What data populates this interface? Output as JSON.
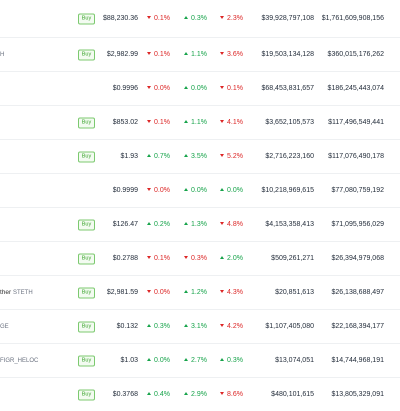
{
  "buy_label": "Buy",
  "colors": {
    "up": "#16a34a",
    "down": "#dc2626",
    "buy_border": "#7cc96f"
  },
  "rows": [
    {
      "name": "",
      "symbol": "",
      "buy": true,
      "price": "$88,230.36",
      "h1": {
        "dir": "down",
        "value": "0.1%"
      },
      "h24": {
        "dir": "up",
        "value": "0.3%"
      },
      "d7": {
        "dir": "down",
        "value": "2.3%"
      },
      "volume": "$39,928,797,108",
      "market_cap": "$1,761,609,908,156"
    },
    {
      "name": "",
      "symbol": "H",
      "buy": true,
      "price": "$2,982.99",
      "h1": {
        "dir": "down",
        "value": "0.1%"
      },
      "h24": {
        "dir": "up",
        "value": "1.1%"
      },
      "d7": {
        "dir": "down",
        "value": "3.6%"
      },
      "volume": "$19,503,134,128",
      "market_cap": "$360,015,176,262"
    },
    {
      "name": "",
      "symbol": "",
      "buy": false,
      "price": "$0.9996",
      "h1": {
        "dir": "down",
        "value": "0.0%"
      },
      "h24": {
        "dir": "up",
        "value": "0.0%"
      },
      "d7": {
        "dir": "down",
        "value": "0.1%"
      },
      "volume": "$68,453,831,657",
      "market_cap": "$186,245,443,074"
    },
    {
      "name": "",
      "symbol": "",
      "buy": true,
      "price": "$853.02",
      "h1": {
        "dir": "down",
        "value": "0.1%"
      },
      "h24": {
        "dir": "up",
        "value": "1.1%"
      },
      "d7": {
        "dir": "down",
        "value": "4.1%"
      },
      "volume": "$3,652,105,573",
      "market_cap": "$117,496,549,441"
    },
    {
      "name": "",
      "symbol": "",
      "buy": true,
      "price": "$1.93",
      "h1": {
        "dir": "up",
        "value": "0.7%"
      },
      "h24": {
        "dir": "up",
        "value": "3.5%"
      },
      "d7": {
        "dir": "down",
        "value": "5.2%"
      },
      "volume": "$2,716,223,160",
      "market_cap": "$117,076,490,178"
    },
    {
      "name": "",
      "symbol": "",
      "buy": false,
      "price": "$0.9999",
      "h1": {
        "dir": "down",
        "value": "0.0%"
      },
      "h24": {
        "dir": "up",
        "value": "0.0%"
      },
      "d7": {
        "dir": "up",
        "value": "0.0%"
      },
      "volume": "$10,218,969,615",
      "market_cap": "$77,080,759,192"
    },
    {
      "name": "",
      "symbol": "",
      "buy": true,
      "price": "$126.47",
      "h1": {
        "dir": "up",
        "value": "0.2%"
      },
      "h24": {
        "dir": "up",
        "value": "1.3%"
      },
      "d7": {
        "dir": "down",
        "value": "4.8%"
      },
      "volume": "$4,153,358,413",
      "market_cap": "$71,095,956,029"
    },
    {
      "name": "",
      "symbol": "",
      "buy": true,
      "price": "$0.2788",
      "h1": {
        "dir": "down",
        "value": "0.1%"
      },
      "h24": {
        "dir": "down",
        "value": "0.3%"
      },
      "d7": {
        "dir": "up",
        "value": "2.0%"
      },
      "volume": "$509,261,271",
      "market_cap": "$26,394,979,068"
    },
    {
      "name": "ther",
      "symbol": "STETH",
      "buy": true,
      "price": "$2,981.59",
      "h1": {
        "dir": "down",
        "value": "0.0%"
      },
      "h24": {
        "dir": "up",
        "value": "1.2%"
      },
      "d7": {
        "dir": "down",
        "value": "4.3%"
      },
      "volume": "$20,851,613",
      "market_cap": "$26,138,688,497"
    },
    {
      "name": "",
      "symbol": "GE",
      "buy": true,
      "price": "$0.132",
      "h1": {
        "dir": "up",
        "value": "0.3%"
      },
      "h24": {
        "dir": "up",
        "value": "3.1%"
      },
      "d7": {
        "dir": "down",
        "value": "4.2%"
      },
      "volume": "$1,107,405,080",
      "market_cap": "$22,168,394,177"
    },
    {
      "name": "",
      "symbol": "FIGR_HELOC",
      "buy": true,
      "price": "$1.03",
      "h1": {
        "dir": "up",
        "value": "0.0%"
      },
      "h24": {
        "dir": "up",
        "value": "2.7%"
      },
      "d7": {
        "dir": "up",
        "value": "0.3%"
      },
      "volume": "$13,074,051",
      "market_cap": "$14,744,968,191"
    },
    {
      "name": "",
      "symbol": "",
      "buy": true,
      "price": "$0.3768",
      "h1": {
        "dir": "up",
        "value": "0.4%"
      },
      "h24": {
        "dir": "up",
        "value": "2.9%"
      },
      "d7": {
        "dir": "down",
        "value": "8.6%"
      },
      "volume": "$480,101,615",
      "market_cap": "$13,805,329,091"
    }
  ]
}
